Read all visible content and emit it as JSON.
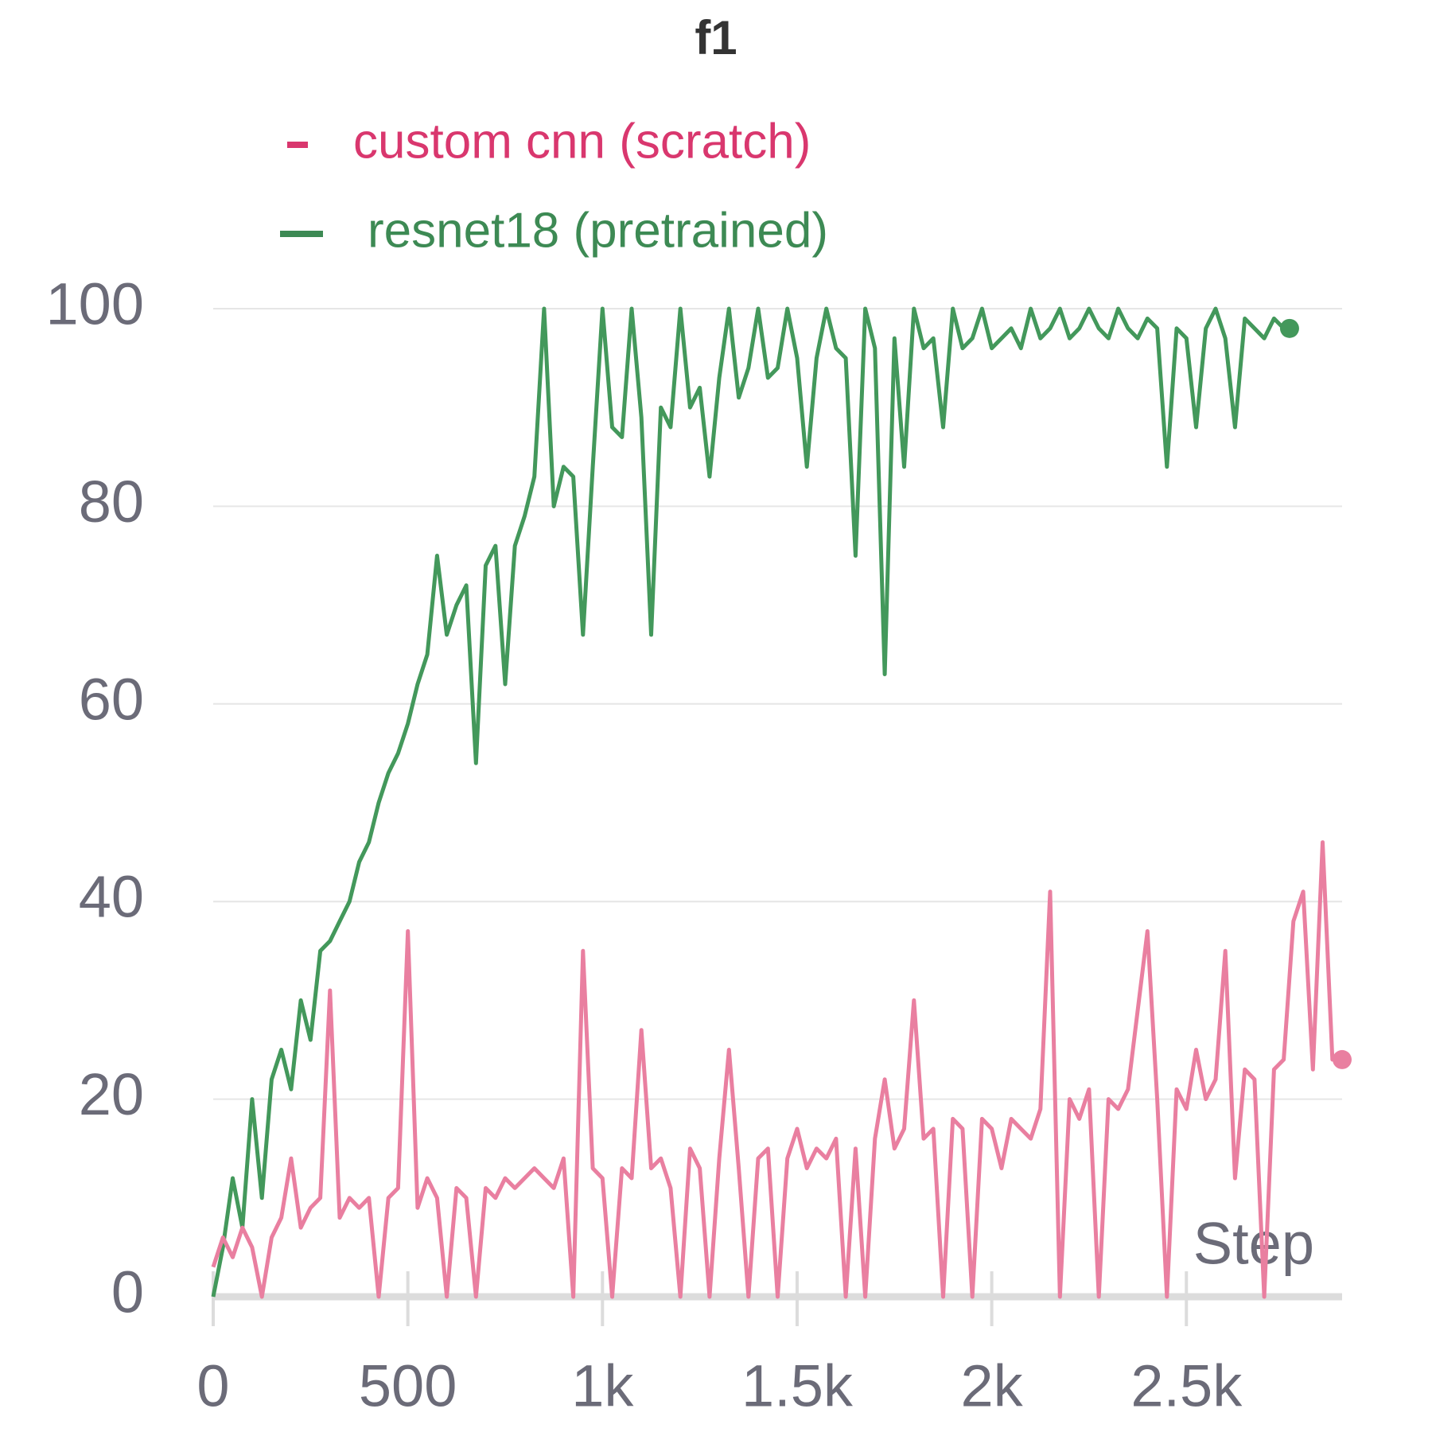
{
  "chart_data": {
    "type": "line",
    "title": "f1",
    "x_label": "Step",
    "xlim": [
      0,
      2900
    ],
    "ylim": [
      0,
      100
    ],
    "xticks": [
      0,
      500,
      {
        "value": 1000,
        "label": "1k"
      },
      {
        "value": 1500,
        "label": "1.5k"
      },
      {
        "value": 2000,
        "label": "2k"
      },
      {
        "value": 2500,
        "label": "2.5k"
      }
    ],
    "yticks": [
      0,
      20,
      40,
      60,
      80,
      100
    ],
    "grid": true,
    "series": [
      {
        "name": "custom cnn (scratch)",
        "color": "#e97fa0",
        "legend_color": "#d9376e",
        "x": [
          0,
          25,
          50,
          75,
          100,
          125,
          150,
          175,
          200,
          225,
          250,
          275,
          300,
          325,
          350,
          375,
          400,
          425,
          450,
          475,
          500,
          525,
          550,
          575,
          600,
          625,
          650,
          675,
          700,
          725,
          750,
          775,
          800,
          825,
          850,
          875,
          900,
          925,
          950,
          975,
          1000,
          1025,
          1050,
          1075,
          1100,
          1125,
          1150,
          1175,
          1200,
          1225,
          1250,
          1275,
          1300,
          1325,
          1350,
          1375,
          1400,
          1425,
          1450,
          1475,
          1500,
          1525,
          1550,
          1575,
          1600,
          1625,
          1650,
          1675,
          1700,
          1725,
          1750,
          1775,
          1800,
          1825,
          1850,
          1875,
          1900,
          1925,
          1950,
          1975,
          2000,
          2025,
          2050,
          2075,
          2100,
          2125,
          2150,
          2175,
          2200,
          2225,
          2250,
          2275,
          2300,
          2325,
          2350,
          2375,
          2400,
          2425,
          2450,
          2475,
          2500,
          2525,
          2550,
          2575,
          2600,
          2625,
          2650,
          2675,
          2700,
          2725,
          2750,
          2775,
          2800,
          2825,
          2850,
          2875,
          2900
        ],
        "values": [
          3,
          6,
          4,
          7,
          5,
          0,
          6,
          8,
          14,
          7,
          9,
          10,
          31,
          8,
          10,
          9,
          10,
          0,
          10,
          11,
          37,
          9,
          12,
          10,
          0,
          11,
          10,
          0,
          11,
          10,
          12,
          11,
          12,
          13,
          12,
          11,
          14,
          0,
          35,
          13,
          12,
          0,
          13,
          12,
          27,
          13,
          14,
          11,
          0,
          15,
          13,
          0,
          14,
          25,
          13,
          0,
          14,
          15,
          0,
          14,
          17,
          13,
          15,
          14,
          16,
          0,
          15,
          0,
          16,
          22,
          15,
          17,
          30,
          16,
          17,
          0,
          18,
          17,
          0,
          18,
          17,
          13,
          18,
          17,
          16,
          19,
          41,
          0,
          20,
          18,
          21,
          0,
          20,
          19,
          21,
          29,
          37,
          20,
          0,
          21,
          19,
          25,
          20,
          22,
          35,
          12,
          23,
          22,
          0,
          23,
          24,
          38,
          41,
          23,
          46,
          24,
          24
        ]
      },
      {
        "name": "resnet18 (pretrained)",
        "color": "#43985b",
        "legend_color": "#3d8a54",
        "x": [
          0,
          25,
          50,
          75,
          100,
          125,
          150,
          175,
          200,
          225,
          250,
          275,
          300,
          325,
          350,
          375,
          400,
          425,
          450,
          475,
          500,
          525,
          550,
          575,
          600,
          625,
          650,
          675,
          700,
          725,
          750,
          775,
          800,
          825,
          850,
          875,
          900,
          925,
          950,
          975,
          1000,
          1025,
          1050,
          1075,
          1100,
          1125,
          1150,
          1175,
          1200,
          1225,
          1250,
          1275,
          1300,
          1325,
          1350,
          1375,
          1400,
          1425,
          1450,
          1475,
          1500,
          1525,
          1550,
          1575,
          1600,
          1625,
          1650,
          1675,
          1700,
          1725,
          1750,
          1775,
          1800,
          1825,
          1850,
          1875,
          1900,
          1925,
          1950,
          1975,
          2000,
          2025,
          2050,
          2075,
          2100,
          2125,
          2150,
          2175,
          2200,
          2225,
          2250,
          2275,
          2300,
          2325,
          2350,
          2375,
          2400,
          2425,
          2450,
          2475,
          2500,
          2525,
          2550,
          2575,
          2600,
          2625,
          2650,
          2675,
          2700,
          2725,
          2750,
          2765
        ],
        "values": [
          0,
          5,
          12,
          7,
          20,
          10,
          22,
          25,
          21,
          30,
          26,
          35,
          36,
          38,
          40,
          44,
          46,
          50,
          53,
          55,
          58,
          62,
          65,
          75,
          67,
          70,
          72,
          54,
          74,
          76,
          62,
          76,
          79,
          83,
          100,
          80,
          84,
          83,
          67,
          84,
          100,
          88,
          87,
          100,
          89,
          67,
          90,
          88,
          100,
          90,
          92,
          83,
          93,
          100,
          91,
          94,
          100,
          93,
          94,
          100,
          95,
          84,
          95,
          100,
          96,
          95,
          75,
          100,
          96,
          63,
          97,
          84,
          100,
          96,
          97,
          88,
          100,
          96,
          97,
          100,
          96,
          97,
          98,
          96,
          100,
          97,
          98,
          100,
          97,
          98,
          100,
          98,
          97,
          100,
          98,
          97,
          99,
          98,
          84,
          98,
          97,
          88,
          98,
          100,
          97,
          88,
          99,
          98,
          97,
          99,
          98,
          98
        ]
      }
    ]
  }
}
